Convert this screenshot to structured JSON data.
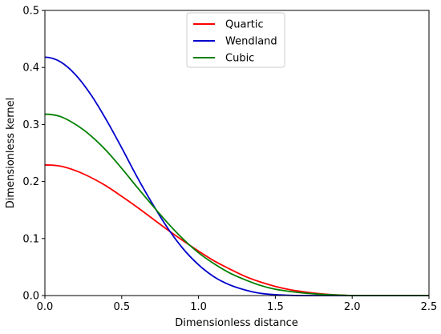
{
  "chart_data": {
    "type": "line",
    "title": "",
    "xlabel": "Dimensionless distance",
    "ylabel": "Dimensionless kernel",
    "xlim": [
      0,
      2.5
    ],
    "ylim": [
      0,
      0.5
    ],
    "xticks": [
      "0.0",
      "0.5",
      "1.0",
      "1.5",
      "2.0",
      "2.5"
    ],
    "yticks": [
      "0.0",
      "0.1",
      "0.2",
      "0.3",
      "0.4",
      "0.5"
    ],
    "grid": false,
    "legend_position": "top-center",
    "x": [
      0,
      0.1,
      0.2,
      0.3,
      0.4,
      0.5,
      0.6,
      0.7,
      0.8,
      0.9,
      1.0,
      1.1,
      1.2,
      1.3,
      1.4,
      1.5,
      1.6,
      1.7,
      1.8,
      1.9,
      2.0,
      2.1,
      2.2,
      2.3,
      2.4,
      2.5
    ],
    "series": [
      {
        "name": "Quartic",
        "color": "#ff0000",
        "values": [
          0.229,
          0.227,
          0.219,
          0.207,
          0.192,
          0.174,
          0.155,
          0.135,
          0.115,
          0.096,
          0.078,
          0.061,
          0.047,
          0.034,
          0.024,
          0.016,
          0.01,
          0.006,
          0.003,
          0.001,
          0.0,
          0.0,
          0.0,
          0.0,
          0.0,
          0.0
        ]
      },
      {
        "name": "Wendland",
        "color": "#0000cc",
        "values": [
          0.418,
          0.41,
          0.387,
          0.352,
          0.308,
          0.259,
          0.208,
          0.161,
          0.118,
          0.082,
          0.054,
          0.033,
          0.019,
          0.01,
          0.004,
          0.0015,
          0.0004,
          0.0,
          0.0,
          0.0,
          0.0,
          0.0,
          0.0,
          0.0,
          0.0,
          0.0
        ]
      },
      {
        "name": "Cubic",
        "color": "#008000",
        "values": [
          0.318,
          0.314,
          0.3,
          0.28,
          0.254,
          0.223,
          0.19,
          0.158,
          0.127,
          0.099,
          0.075,
          0.056,
          0.04,
          0.028,
          0.018,
          0.011,
          0.007,
          0.004,
          0.002,
          0.001,
          0.0,
          0.0,
          0.0,
          0.0,
          0.0,
          0.0
        ]
      }
    ]
  }
}
